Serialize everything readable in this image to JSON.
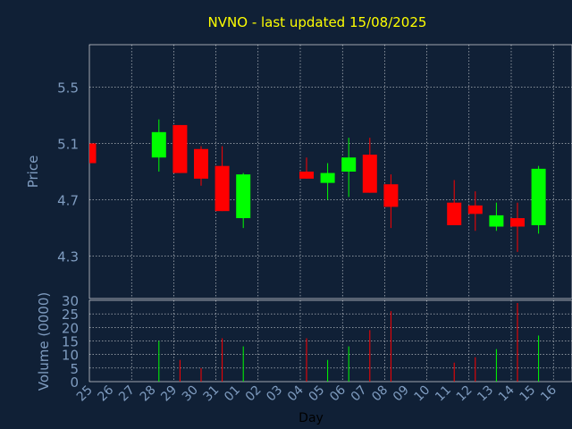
{
  "chart_data": {
    "type": "candlestick",
    "title": "NVNO - last updated 15/08/2025",
    "xlabel": "Day",
    "ylabel": "Price",
    "volume_label": "Volume (0000)",
    "colors": {
      "background": "#102036",
      "axis_text": "#7f9cc0",
      "title": "#ffff00",
      "up": "#00ff00",
      "down": "#ff0000",
      "grid": "#ffffff"
    },
    "grid": true,
    "price_ticks": [
      "5.5",
      "5.1",
      "4.7",
      "4.3"
    ],
    "volume_ticks": [
      "30",
      "25",
      "20",
      "15",
      "10",
      "5",
      "0"
    ],
    "price_ylim": [
      4.0,
      5.8
    ],
    "volume_ylim": [
      0,
      30
    ],
    "days": [
      "25",
      "26",
      "27",
      "28",
      "29",
      "30",
      "31",
      "01",
      "02",
      "03",
      "04",
      "05",
      "06",
      "07",
      "08",
      "09",
      "10",
      "11",
      "12",
      "13",
      "14",
      "15",
      "16"
    ],
    "candles": [
      {
        "day": "25",
        "open": 5.1,
        "close": 4.96,
        "high": 5.1,
        "low": 4.96,
        "volume": 0
      },
      {
        "day": "28",
        "open": 5.0,
        "close": 5.18,
        "high": 5.27,
        "low": 4.9,
        "volume": 15
      },
      {
        "day": "29",
        "open": 5.23,
        "close": 4.89,
        "high": 5.23,
        "low": 4.89,
        "volume": 8
      },
      {
        "day": "30",
        "open": 5.06,
        "close": 4.85,
        "high": 5.08,
        "low": 4.8,
        "volume": 5
      },
      {
        "day": "31",
        "open": 4.94,
        "close": 4.62,
        "high": 5.08,
        "low": 4.62,
        "volume": 16
      },
      {
        "day": "01",
        "open": 4.57,
        "close": 4.88,
        "high": 4.89,
        "low": 4.5,
        "volume": 13
      },
      {
        "day": "04",
        "open": 4.9,
        "close": 4.85,
        "high": 5.0,
        "low": 4.85,
        "volume": 16
      },
      {
        "day": "05",
        "open": 4.82,
        "close": 4.89,
        "high": 4.96,
        "low": 4.7,
        "volume": 8
      },
      {
        "day": "06",
        "open": 4.9,
        "close": 5.0,
        "high": 5.14,
        "low": 4.72,
        "volume": 13
      },
      {
        "day": "07",
        "open": 5.02,
        "close": 4.75,
        "high": 5.14,
        "low": 4.75,
        "volume": 19
      },
      {
        "day": "08",
        "open": 4.81,
        "close": 4.65,
        "high": 4.88,
        "low": 4.5,
        "volume": 26
      },
      {
        "day": "11",
        "open": 4.68,
        "close": 4.52,
        "high": 4.84,
        "low": 4.52,
        "volume": 7
      },
      {
        "day": "12",
        "open": 4.66,
        "close": 4.6,
        "high": 4.76,
        "low": 4.48,
        "volume": 9
      },
      {
        "day": "13",
        "open": 4.51,
        "close": 4.59,
        "high": 4.68,
        "low": 4.48,
        "volume": 12
      },
      {
        "day": "14",
        "open": 4.57,
        "close": 4.51,
        "high": 4.68,
        "low": 4.33,
        "volume": 29
      },
      {
        "day": "15",
        "open": 4.52,
        "close": 4.92,
        "high": 4.94,
        "low": 4.46,
        "volume": 17
      }
    ]
  }
}
